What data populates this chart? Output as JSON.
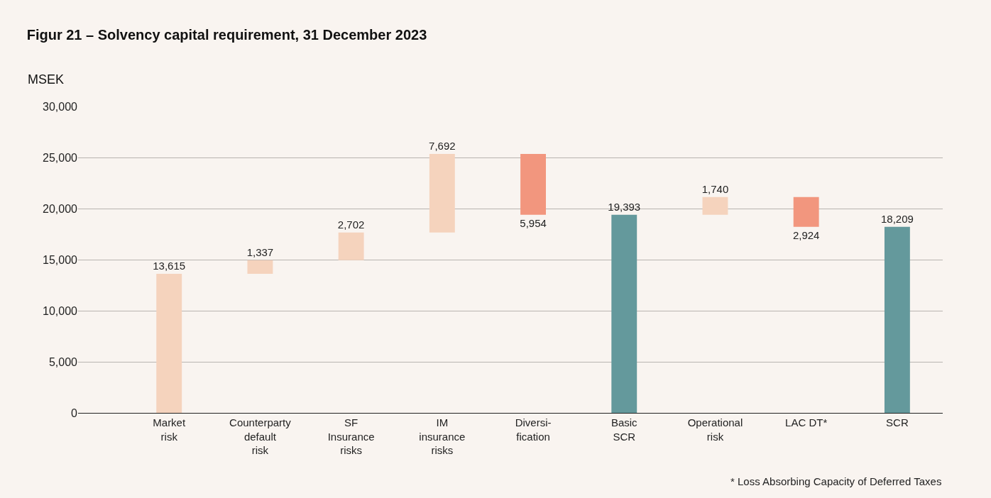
{
  "chart_data": {
    "type": "bar",
    "title": "Figur 21 – Solvency capital requirement, 31 December 2023",
    "ylabel": "MSEK",
    "categories": [
      "Market\nrisk",
      "Counterparty\ndefault\nrisk",
      "SF\nInsurance\nrisks",
      "IM\ninsurance\nrisks",
      "Diversi-\nfication",
      "Basic\nSCR",
      "Operational\nrisk",
      "LAC DT*",
      "SCR"
    ],
    "values": [
      13615,
      1337,
      2702,
      7692,
      -5954,
      19393,
      1740,
      -2924,
      18209
    ],
    "base": [
      0,
      13615,
      14952,
      17654,
      25346,
      0,
      19393,
      21133,
      0
    ],
    "value_labels": [
      "13,615",
      "1,337",
      "2,702",
      "7,692",
      "5,954",
      "19,393",
      "1,740",
      "2,924",
      "18,209"
    ],
    "colors": [
      "#f5d3bd",
      "#f5d3bd",
      "#f5d3bd",
      "#f5d3bd",
      "#f2967e",
      "#64999c",
      "#f5d3bd",
      "#f2967e",
      "#64999c"
    ],
    "ylim": [
      0,
      30000
    ],
    "yticks": [
      {
        "value": 0,
        "label": "0"
      },
      {
        "value": 5000,
        "label": "5,000"
      },
      {
        "value": 10000,
        "label": "10,000"
      },
      {
        "value": 15000,
        "label": "15,000"
      },
      {
        "value": 20000,
        "label": "20,000"
      },
      {
        "value": 25000,
        "label": "25,000"
      },
      {
        "value": 30000,
        "label": "30,000"
      }
    ],
    "grid": "y",
    "legend": false,
    "annotations": [
      "* Loss Absorbing Capacity of Deferred Taxes"
    ]
  }
}
